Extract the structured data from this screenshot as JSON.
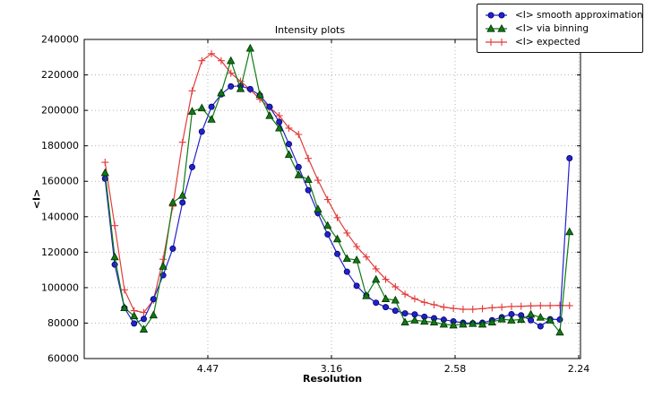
{
  "chart_data": {
    "type": "line",
    "title": "Intensity plots",
    "xlabel": "Resolution",
    "ylabel": "<I>",
    "grid": true,
    "legend_position": "upper-right-outside",
    "x_unit": "1/d^2",
    "x_axis": {
      "min": 0,
      "max": 0.20072,
      "ticks": [
        {
          "pos": 0.05,
          "label": "4.47"
        },
        {
          "pos": 0.1,
          "label": "3.16"
        },
        {
          "pos": 0.15,
          "label": "2.58"
        },
        {
          "pos": 0.2,
          "label": "2.24"
        }
      ]
    },
    "y_axis": {
      "min": 60000,
      "max": 240000,
      "tick_step": 20000
    },
    "x": [
      0.00844,
      0.01235,
      0.01627,
      0.02018,
      0.02409,
      0.02801,
      0.03192,
      0.03583,
      0.03975,
      0.04366,
      0.04757,
      0.05149,
      0.0554,
      0.05931,
      0.06323,
      0.06714,
      0.07105,
      0.07497,
      0.07888,
      0.08279,
      0.08671,
      0.09062,
      0.09453,
      0.09845,
      0.10236,
      0.10627,
      0.11019,
      0.1141,
      0.11801,
      0.12193,
      0.12584,
      0.12975,
      0.13367,
      0.13758,
      0.14149,
      0.14541,
      0.14932,
      0.15323,
      0.15715,
      0.16106,
      0.16497,
      0.16889,
      0.1728,
      0.17671,
      0.18063,
      0.18454,
      0.18845,
      0.19237,
      0.19628
    ],
    "series": [
      {
        "name": "<I> smooth approximation",
        "marker": "circle",
        "color": "#2222cc",
        "marker_edge": "#000066",
        "values": [
          161500,
          113000,
          88500,
          79800,
          82300,
          93500,
          107000,
          122000,
          148000,
          168000,
          188000,
          202000,
          209000,
          213500,
          213800,
          212000,
          208500,
          202000,
          193500,
          181000,
          168000,
          155000,
          142000,
          130000,
          119000,
          109000,
          101000,
          95500,
          91500,
          89000,
          87000,
          85500,
          84900,
          83600,
          82750,
          81900,
          81000,
          80200,
          79900,
          80200,
          81600,
          83300,
          85000,
          84400,
          81600,
          78200,
          82200,
          82000,
          173000
        ]
      },
      {
        "name": "<I> via binning",
        "marker": "triangle",
        "color": "#0e7a12",
        "marker_edge": "#042d04",
        "values": [
          164800,
          117300,
          88600,
          84000,
          76500,
          84500,
          112000,
          148000,
          152000,
          199400,
          201300,
          194900,
          209800,
          228000,
          212200,
          235000,
          208800,
          197000,
          190000,
          175000,
          163600,
          161000,
          144300,
          135000,
          127400,
          116400,
          115600,
          95400,
          104600,
          93700,
          92900,
          80500,
          81600,
          81000,
          80550,
          79350,
          78850,
          79350,
          79700,
          79350,
          80550,
          82250,
          81600,
          82000,
          84950,
          83250,
          81600,
          74850,
          131500
        ]
      },
      {
        "name": "<I> expected",
        "marker": "plus",
        "color": "#e23b3b",
        "marker_edge": "#e23b3b",
        "values": [
          170700,
          135000,
          98750,
          87000,
          86000,
          93000,
          116000,
          146000,
          182000,
          211000,
          228000,
          232000,
          228000,
          221000,
          216400,
          211700,
          206300,
          201600,
          197000,
          190000,
          186400,
          172900,
          160600,
          149700,
          139500,
          130800,
          123200,
          117300,
          110600,
          104700,
          100500,
          96300,
          93700,
          91700,
          90350,
          89000,
          88300,
          87800,
          87800,
          88150,
          88650,
          89000,
          89350,
          89500,
          89700,
          89850,
          89850,
          90000,
          89850
        ]
      }
    ]
  }
}
